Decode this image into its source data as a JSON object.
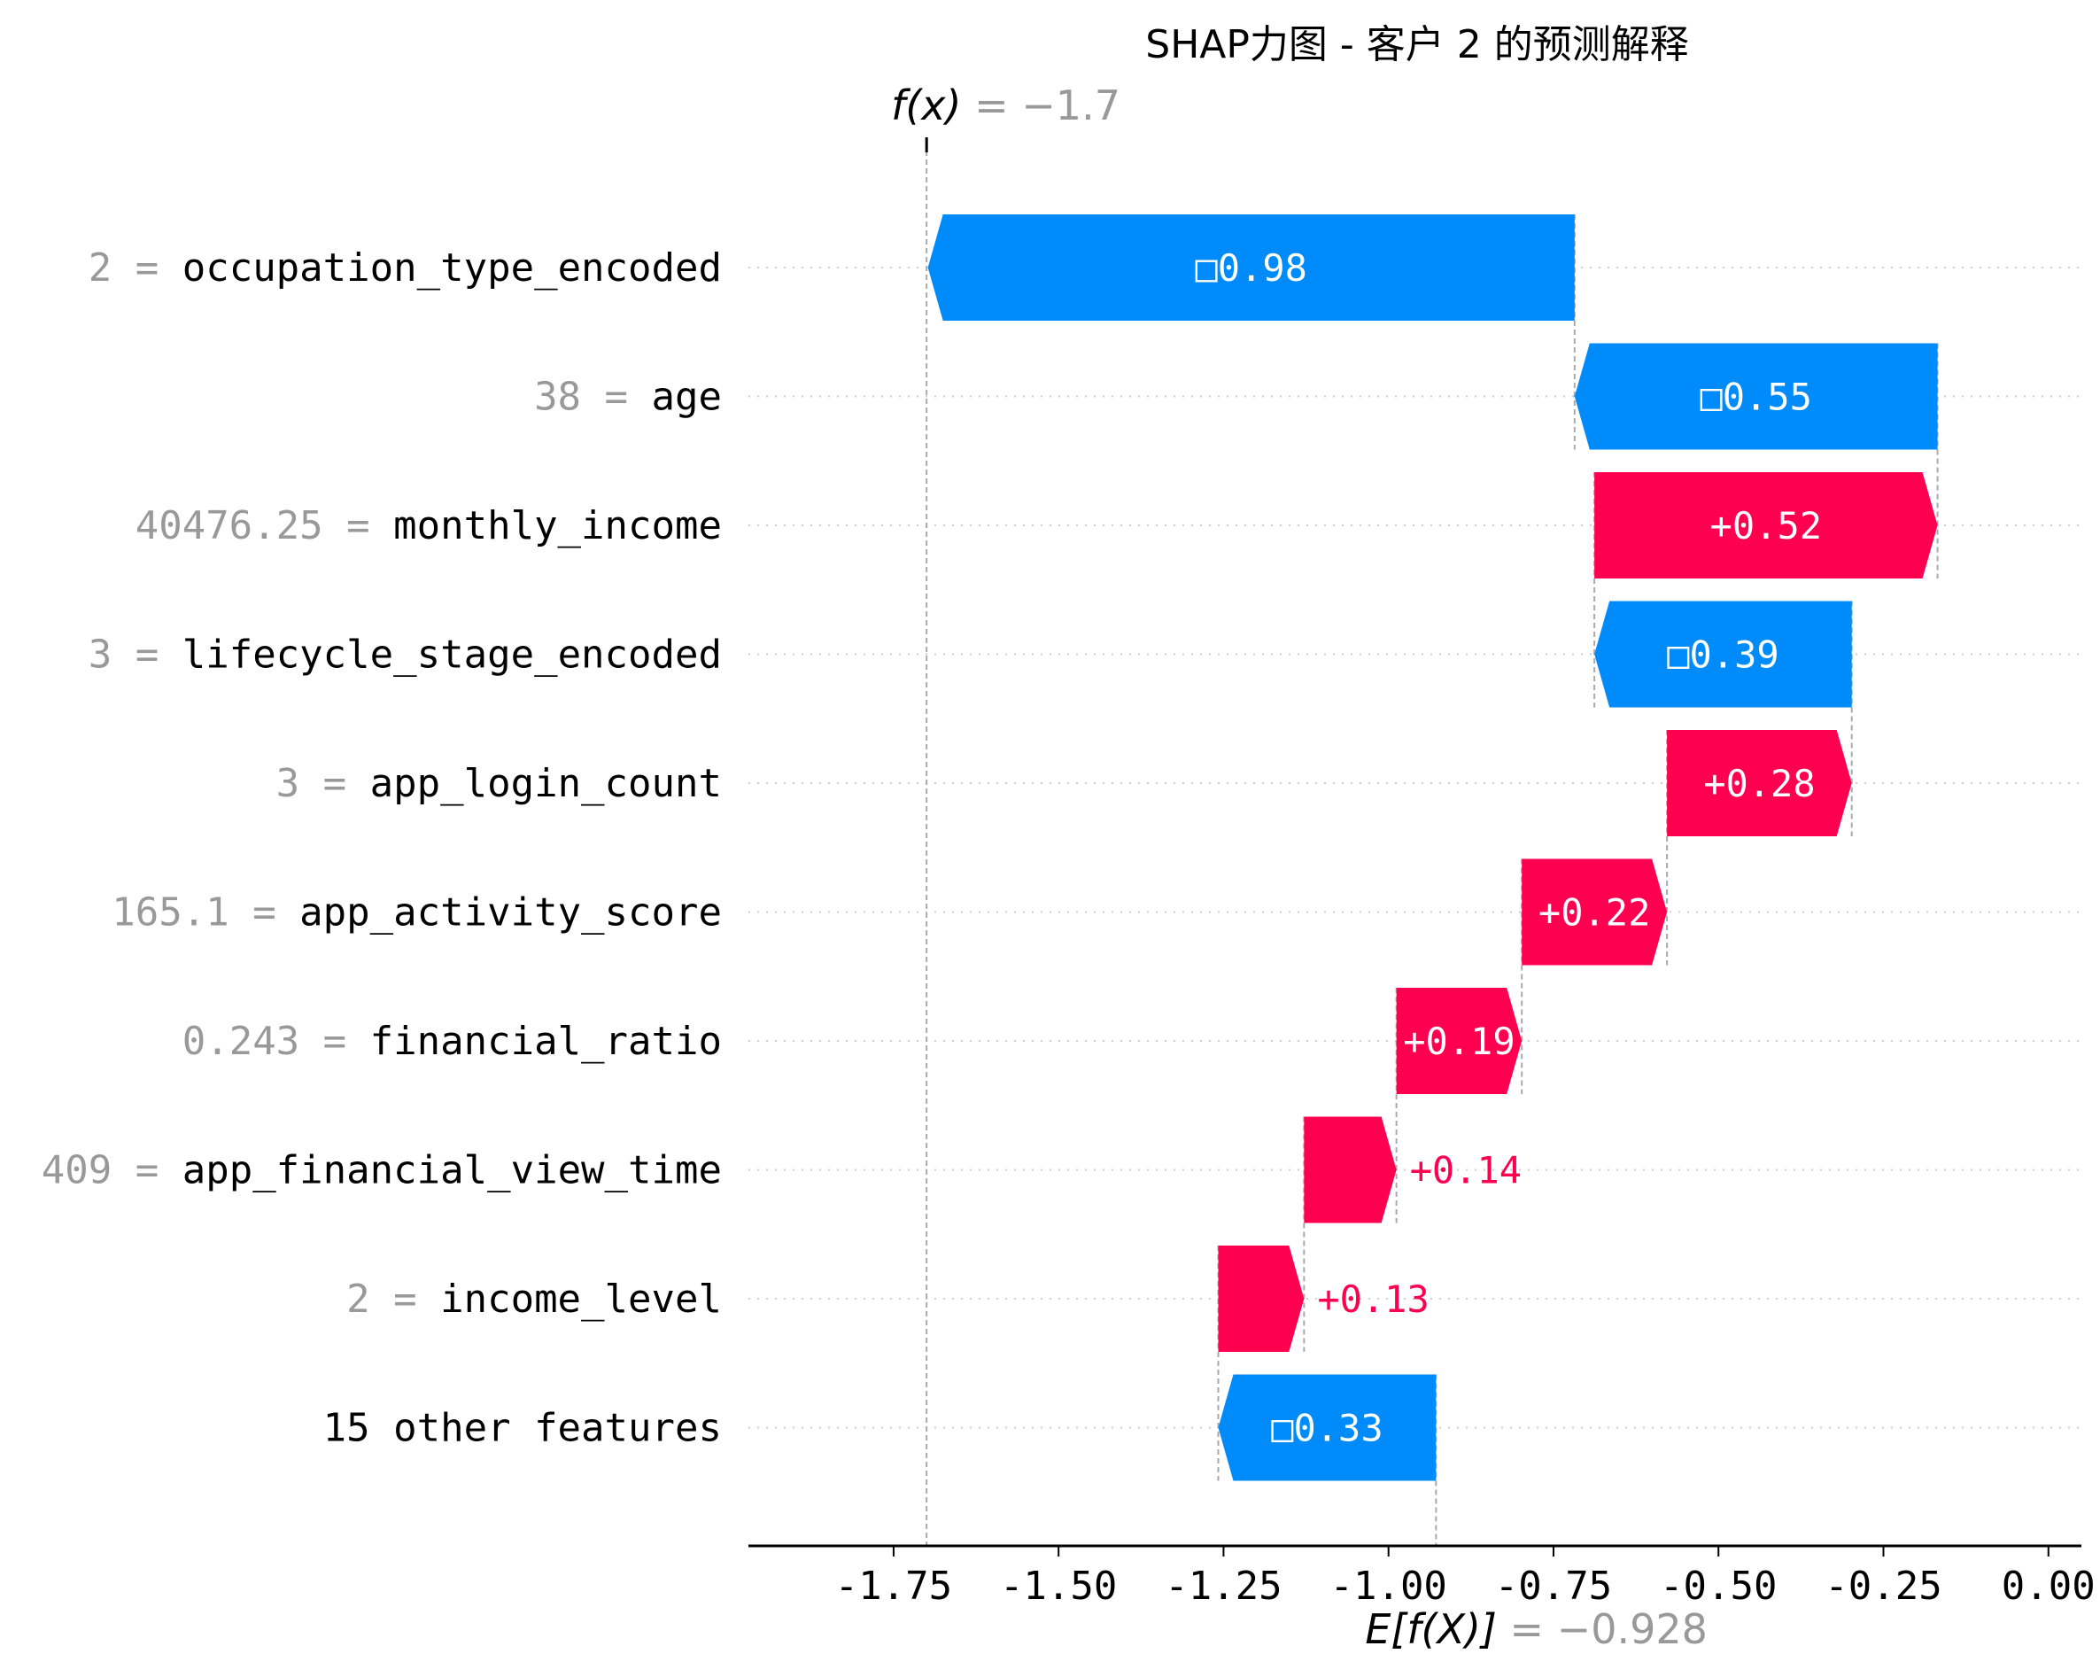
{
  "chart_data": {
    "type": "bar",
    "subtype": "waterfall",
    "title": "SHAP力图 - 客户 2 的预测解释",
    "fx_label": "f(x)",
    "fx_value_text": "= −1.7",
    "fx": -1.7,
    "base_label": "E[f(X)]",
    "base_value_text": "= −0.928",
    "base_value": -0.928,
    "xlim": [
      -1.97,
      0.05
    ],
    "xticks": [
      -1.75,
      -1.5,
      -1.25,
      -1.0,
      -0.75,
      -0.5,
      -0.25,
      0.0
    ],
    "xtick_labels": [
      "-1.75",
      "-1.50",
      "-1.25",
      "-1.00",
      "-0.75",
      "-0.50",
      "-0.25",
      "0.00"
    ],
    "grid": "horizontal dotted",
    "features": [
      {
        "value": "2",
        "name": "occupation_type_encoded",
        "contribution": -0.98,
        "label": "□0.98"
      },
      {
        "value": "38",
        "name": "age",
        "contribution": -0.55,
        "label": "□0.55"
      },
      {
        "value": "40476.25",
        "name": "monthly_income",
        "contribution": 0.52,
        "label": "+0.52"
      },
      {
        "value": "3",
        "name": "lifecycle_stage_encoded",
        "contribution": -0.39,
        "label": "□0.39"
      },
      {
        "value": "3",
        "name": "app_login_count",
        "contribution": 0.28,
        "label": "+0.28"
      },
      {
        "value": "165.1",
        "name": "app_activity_score",
        "contribution": 0.22,
        "label": "+0.22"
      },
      {
        "value": "0.243",
        "name": "financial_ratio",
        "contribution": 0.19,
        "label": "+0.19"
      },
      {
        "value": "409",
        "name": "app_financial_view_time",
        "contribution": 0.14,
        "label": "+0.14"
      },
      {
        "value": "2",
        "name": "income_level",
        "contribution": 0.13,
        "label": "+0.13"
      },
      {
        "value": "",
        "name": "15 other features",
        "contribution": -0.33,
        "label": "□0.33"
      }
    ],
    "colors": {
      "positive": "#ff0051",
      "negative": "#008bfb",
      "feature_value": "#999999",
      "axis": "#000000",
      "grid": "#cccccc"
    }
  }
}
